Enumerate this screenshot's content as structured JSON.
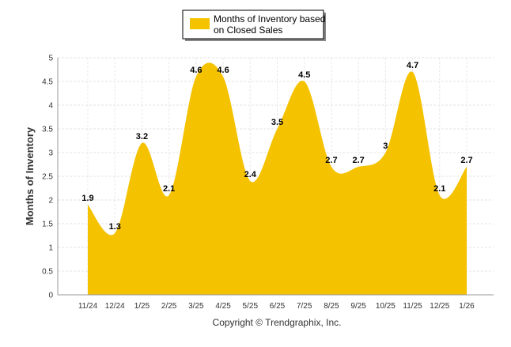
{
  "chart_data": {
    "type": "area",
    "categories": [
      "11/24",
      "12/24",
      "1/25",
      "2/25",
      "3/25",
      "4/25",
      "5/25",
      "6/25",
      "7/25",
      "8/25",
      "9/25",
      "10/25",
      "11/25",
      "12/25",
      "1/26"
    ],
    "series": [
      {
        "name": "Months of Inventory based on Closed Sales",
        "values": [
          1.9,
          1.3,
          3.2,
          2.1,
          4.6,
          4.6,
          2.4,
          3.5,
          4.5,
          2.7,
          2.7,
          3,
          4.7,
          2.1,
          2.7
        ],
        "color": "#F5C200"
      }
    ],
    "ylabel": "Months of Inventory",
    "ylim": [
      0,
      5
    ],
    "yticks": [
      "0",
      "0.5",
      "1",
      "1.5",
      "2",
      "2.5",
      "3",
      "3.5",
      "4",
      "4.5",
      "5"
    ],
    "grid": true,
    "legend_position": "top-center",
    "footer": "Copyright © Trendgraphix, Inc."
  }
}
